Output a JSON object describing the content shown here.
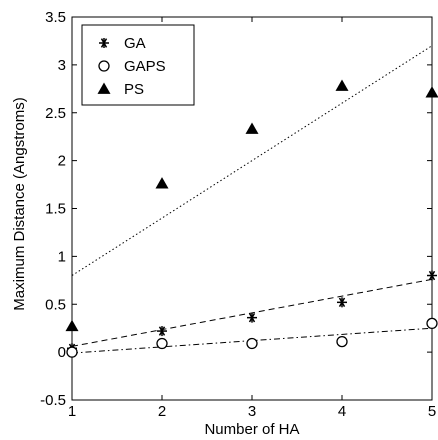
{
  "chart_data": {
    "type": "scatter",
    "title": "",
    "xlabel": "Number of HA",
    "ylabel": "Maximum Distance (Angstroms)",
    "xlim": [
      1,
      5
    ],
    "ylim": [
      -0.5,
      3.5
    ],
    "x_ticks": [
      1,
      2,
      3,
      4,
      5
    ],
    "y_ticks": [
      -0.5,
      0,
      0.5,
      1,
      1.5,
      2,
      2.5,
      3,
      3.5
    ],
    "x_tick_labels": [
      "1",
      "2",
      "3",
      "4",
      "5"
    ],
    "y_tick_labels": [
      "-0.5",
      "0",
      "0.5",
      "1",
      "1.5",
      "2",
      "2.5",
      "3",
      "3.5"
    ],
    "grid": false,
    "legend_position": "top-left",
    "series": [
      {
        "name": "GA",
        "marker": "asterisk",
        "x": [
          1,
          2,
          3,
          4,
          5
        ],
        "y": [
          0.04,
          0.22,
          0.36,
          0.52,
          0.8
        ],
        "fit": {
          "style": "dashed",
          "x": [
            1,
            5
          ],
          "y": [
            0.06,
            0.76
          ]
        }
      },
      {
        "name": "GAPS",
        "marker": "circle",
        "x": [
          1,
          2,
          3,
          4,
          5
        ],
        "y": [
          0.0,
          0.09,
          0.09,
          0.11,
          0.3
        ],
        "fit": {
          "style": "dash-dot",
          "x": [
            1,
            5
          ],
          "y": [
            -0.01,
            0.25
          ]
        }
      },
      {
        "name": "PS",
        "marker": "triangle",
        "x": [
          1,
          2,
          3,
          4,
          5
        ],
        "y": [
          0.27,
          1.76,
          2.33,
          2.78,
          2.71
        ],
        "fit": {
          "style": "dotted",
          "x": [
            1,
            5
          ],
          "y": [
            0.8,
            3.2
          ]
        }
      }
    ],
    "colors": {
      "axis": "#000000",
      "marks": "#000000",
      "background": "#ffffff"
    }
  }
}
